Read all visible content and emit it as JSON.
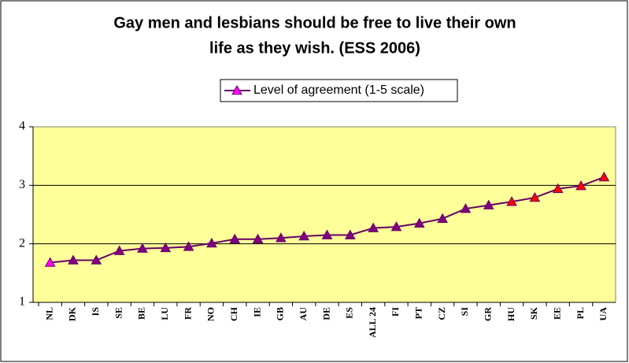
{
  "chart_data": {
    "type": "line",
    "title": [
      "Gay men and lesbians should be free to live their own",
      "life as they wish. (ESS 2006)"
    ],
    "categories": [
      "NL",
      "DK",
      "IS",
      "SE",
      "BE",
      "LU",
      "FR",
      "NO",
      "CH",
      "IE",
      "GB",
      "AU",
      "DE",
      "ES",
      "ALL 24",
      "FI",
      "PT",
      "CZ",
      "SI",
      "GR",
      "HU",
      "SK",
      "EE",
      "PL",
      "UA"
    ],
    "series": [
      {
        "name": "Level of agreement (1-5 scale)",
        "color": "#660066",
        "values": [
          1.68,
          1.72,
          1.72,
          1.88,
          1.92,
          1.93,
          1.95,
          2.01,
          2.08,
          2.08,
          2.1,
          2.13,
          2.15,
          2.15,
          2.27,
          2.29,
          2.35,
          2.43,
          2.6,
          2.66,
          2.72,
          2.79,
          2.94,
          2.99,
          3.14
        ],
        "marker": "triangle",
        "marker_colors": [
          "#ff00ff",
          "#800080",
          "#800080",
          "#800080",
          "#800080",
          "#800080",
          "#800080",
          "#800080",
          "#800080",
          "#800080",
          "#800080",
          "#800080",
          "#800080",
          "#800080",
          "#800080",
          "#800080",
          "#800080",
          "#800080",
          "#800080",
          "#800080",
          "#ff0000",
          "#ff0000",
          "#ff0000",
          "#ff0000",
          "#ff0000"
        ]
      }
    ],
    "ylim": [
      1,
      4
    ],
    "yticks": [
      1,
      2,
      3,
      4
    ],
    "grid": true,
    "plot_background": "#ffff99",
    "legend": "top"
  }
}
